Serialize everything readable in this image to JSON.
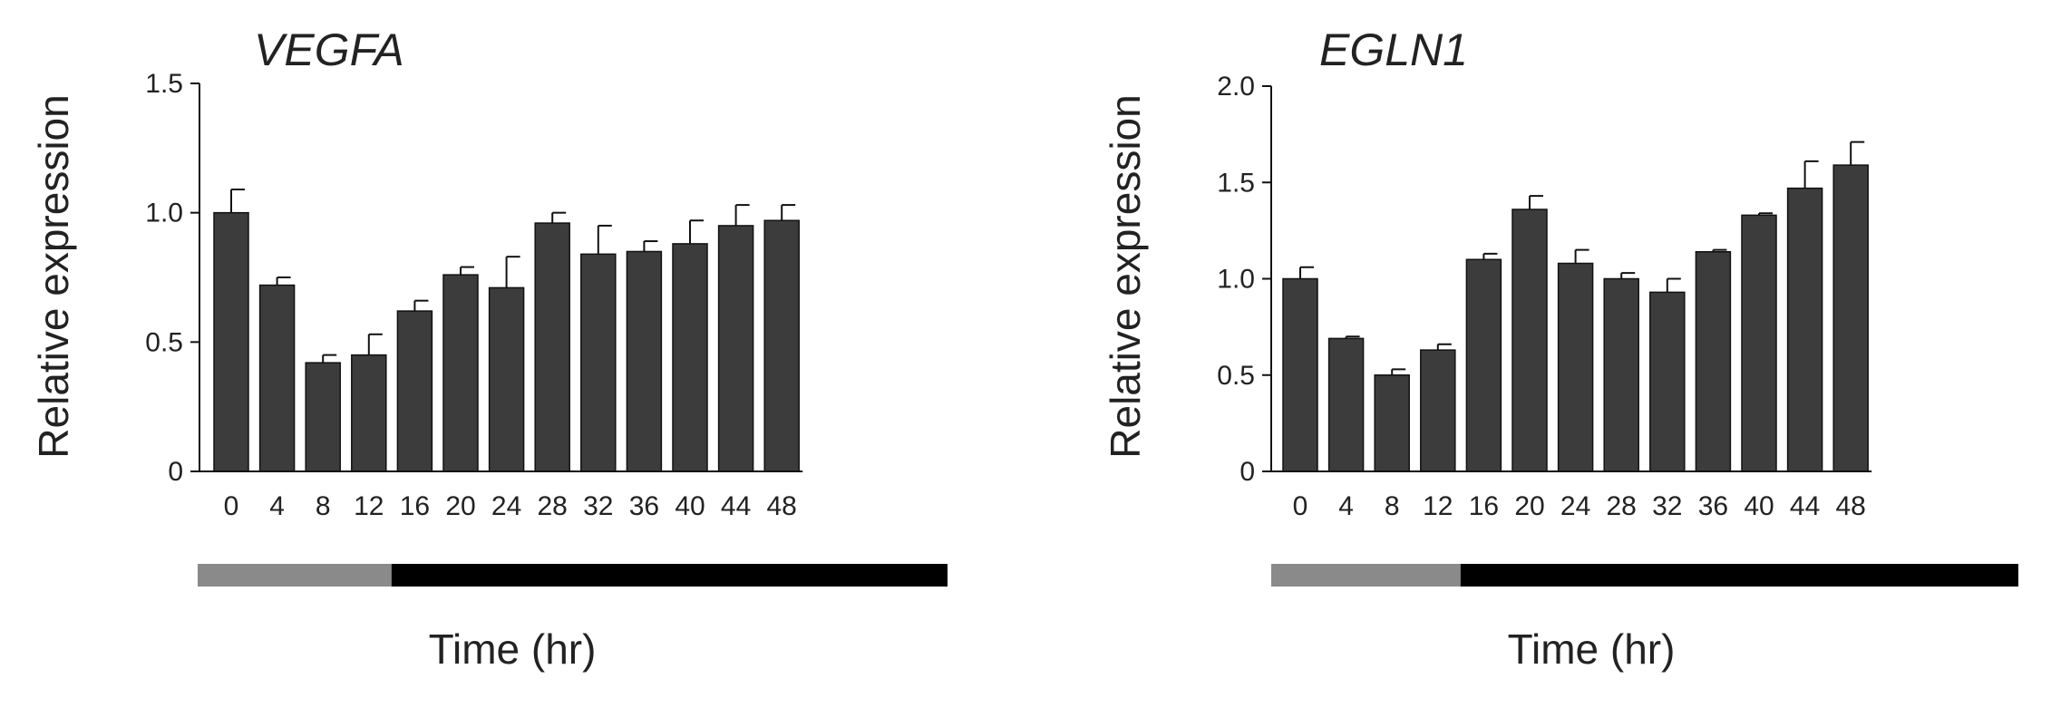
{
  "chart_data": [
    {
      "type": "bar",
      "title": "VEGFA",
      "xlabel": "Time (hr)",
      "ylabel": "Relative expression",
      "ylim": [
        0,
        1.5
      ],
      "yticks": [
        "0",
        "0.5",
        "1.0",
        "1.5"
      ],
      "categories": [
        "0",
        "4",
        "8",
        "12",
        "16",
        "20",
        "24",
        "28",
        "32",
        "36",
        "40",
        "44",
        "48"
      ],
      "values": [
        1.0,
        0.72,
        0.42,
        0.45,
        0.62,
        0.76,
        0.71,
        0.96,
        0.84,
        0.85,
        0.88,
        0.95,
        0.97
      ],
      "errors": [
        0.09,
        0.03,
        0.03,
        0.08,
        0.04,
        0.03,
        0.12,
        0.04,
        0.11,
        0.04,
        0.09,
        0.08,
        0.06
      ],
      "time_bar": {
        "light_until": "12",
        "light_color": "#8a8a8a",
        "dark_color": "#000000"
      },
      "bar_color": "#3c3c3c",
      "grid": false
    },
    {
      "type": "bar",
      "title": "EGLN1",
      "xlabel": "Time (hr)",
      "ylabel": "Relative expression",
      "ylim": [
        0,
        2.0
      ],
      "yticks": [
        "0",
        "0.5",
        "1.0",
        "1.5",
        "2.0"
      ],
      "categories": [
        "0",
        "4",
        "8",
        "12",
        "16",
        "20",
        "24",
        "28",
        "32",
        "36",
        "40",
        "44",
        "48"
      ],
      "values": [
        1.0,
        0.69,
        0.5,
        0.63,
        1.1,
        1.36,
        1.08,
        1.0,
        0.93,
        1.14,
        1.33,
        1.47,
        1.59
      ],
      "errors": [
        0.06,
        0.01,
        0.03,
        0.03,
        0.03,
        0.07,
        0.07,
        0.03,
        0.07,
        0.01,
        0.01,
        0.14,
        0.12
      ],
      "time_bar": {
        "light_until": "12",
        "light_color": "#8a8a8a",
        "dark_color": "#000000"
      },
      "bar_color": "#3c3c3c",
      "grid": false
    }
  ]
}
